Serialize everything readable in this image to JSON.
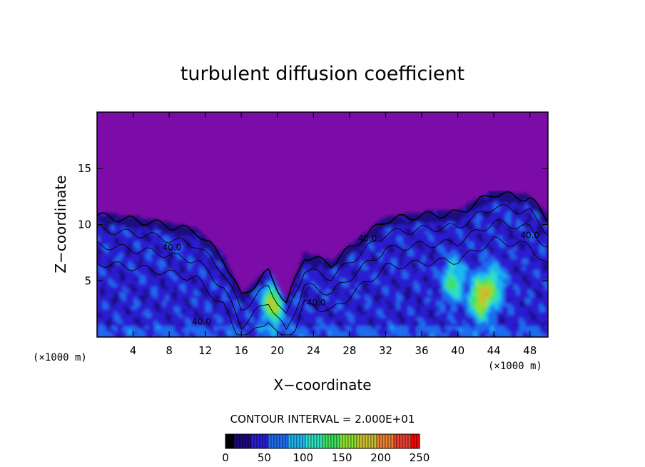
{
  "chart_data": {
    "type": "heatmap",
    "title": "turbulent diffusion coefficient",
    "xlabel": "X−coordinate",
    "ylabel": "Z−coordinate",
    "x_unit": "(×1000 m)",
    "y_unit": "(×1000 m)",
    "xlim": [
      0,
      50
    ],
    "ylim": [
      0,
      20
    ],
    "x_ticks": [
      4,
      8,
      12,
      16,
      20,
      24,
      28,
      32,
      36,
      40,
      44,
      48
    ],
    "y_ticks": [
      5,
      10,
      15
    ],
    "contour_interval_text": "CONTOUR INTERVAL = 2.000E+01",
    "contour_labels": [
      {
        "text": "40.0",
        "x": 8.3,
        "z": 7.7
      },
      {
        "text": "40.0",
        "x": 11.6,
        "z": 1.1
      },
      {
        "text": "40.0",
        "x": 24.3,
        "z": 2.8
      },
      {
        "text": "40.0",
        "x": 30.0,
        "z": 8.5
      },
      {
        "text": "40.0",
        "x": 48.0,
        "z": 8.8
      }
    ],
    "colorbar": {
      "ticks": [
        0,
        50,
        100,
        150,
        200,
        250
      ],
      "range": [
        0,
        250
      ]
    },
    "approx_field": {
      "background_value": 0,
      "upper_boundary_z": [
        {
          "x": 0,
          "z": 10.8
        },
        {
          "x": 6,
          "z": 10.2
        },
        {
          "x": 11,
          "z": 9.4
        },
        {
          "x": 14,
          "z": 7.0
        },
        {
          "x": 16,
          "z": 3.6
        },
        {
          "x": 19,
          "z": 5.8
        },
        {
          "x": 21,
          "z": 3.0
        },
        {
          "x": 23,
          "z": 7.2
        },
        {
          "x": 26,
          "z": 6.5
        },
        {
          "x": 29,
          "z": 8.5
        },
        {
          "x": 32,
          "z": 10.4
        },
        {
          "x": 36,
          "z": 10.8
        },
        {
          "x": 40,
          "z": 11.0
        },
        {
          "x": 44,
          "z": 12.8
        },
        {
          "x": 48,
          "z": 12.3
        },
        {
          "x": 50,
          "z": 10.5
        }
      ],
      "hot_spots": [
        {
          "x": 19.5,
          "z": 3.0,
          "value": 130
        },
        {
          "x": 39.5,
          "z": 5.0,
          "value": 90
        },
        {
          "x": 42.5,
          "z": 3.5,
          "value": 140
        },
        {
          "x": 44.0,
          "z": 4.5,
          "value": 80
        }
      ]
    }
  },
  "palette": [
    "#000000",
    "#1a0a80",
    "#2a1fd0",
    "#1e6cf0",
    "#1fb6f0",
    "#2fe0c0",
    "#40e060",
    "#8ce030",
    "#c8c030",
    "#e88030",
    "#e84030",
    "#ff0000"
  ],
  "background_color": "#7c0ca8"
}
